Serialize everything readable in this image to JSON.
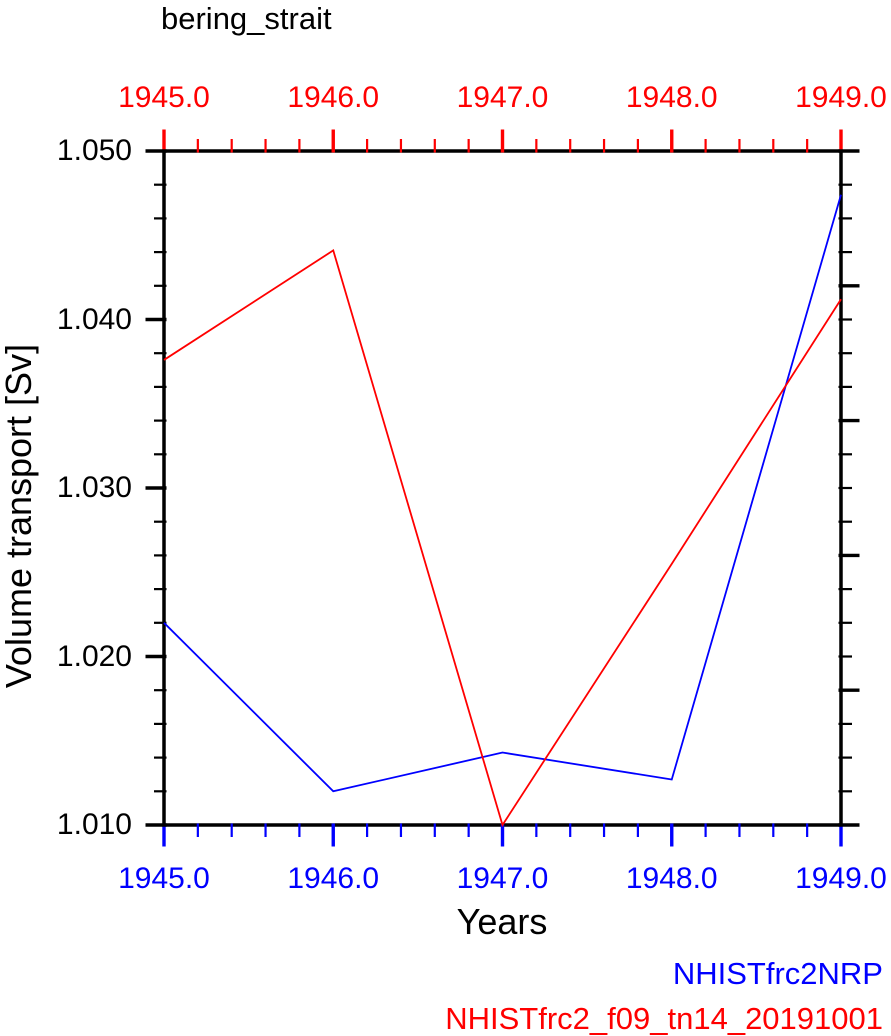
{
  "chart_data": {
    "type": "line",
    "title": "bering_strait",
    "xlabel": "Years",
    "ylabel": "Volume transport [Sv]",
    "x": [
      1945.0,
      1946.0,
      1947.0,
      1948.0,
      1949.0
    ],
    "xlim": [
      1945.0,
      1949.0
    ],
    "ylim": [
      1.01,
      1.05
    ],
    "x_tick_labels": [
      "1945.0",
      "1946.0",
      "1947.0",
      "1948.0",
      "1949.0"
    ],
    "x_tick_values": [
      1945.0,
      1946.0,
      1947.0,
      1948.0,
      1949.0
    ],
    "y_tick_labels": [
      "1.010",
      "1.020",
      "1.030",
      "1.040",
      "1.050"
    ],
    "y_tick_values": [
      1.01,
      1.02,
      1.03,
      1.04,
      1.05
    ],
    "x_minor_intervals_per_major": 5,
    "y_minor_intervals_per_major": 5,
    "right_axis_minor_intervals_per_major": 4,
    "grid": false,
    "markers": false,
    "legend_position": "bottom-right",
    "series": [
      {
        "name": "NHISTfrc2NRP",
        "color": "#0000ff",
        "values": [
          1.022,
          1.012,
          1.0143,
          1.0127,
          1.0474
        ]
      },
      {
        "name": "NHISTfrc2_f09_tn14_20191001",
        "color": "#ff0000",
        "values": [
          1.0376,
          1.0441,
          1.01,
          1.0255,
          1.0412
        ]
      }
    ],
    "axis_colors": {
      "top": "#ff0000",
      "bottom": "#0000ff",
      "left": "#000000",
      "right": "#000000",
      "frame": "#000000"
    }
  }
}
